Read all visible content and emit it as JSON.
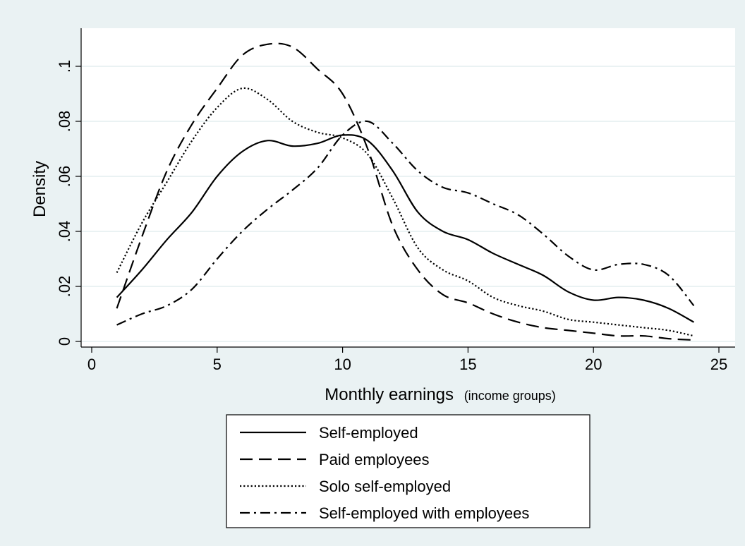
{
  "chart_data": {
    "type": "line",
    "title": "",
    "xlabel": "Monthly earnings",
    "xlabel_note": "(income groups)",
    "ylabel": "Density",
    "xlim": [
      0,
      25
    ],
    "ylim": [
      0,
      0.11
    ],
    "xticks": [
      0,
      5,
      10,
      15,
      20,
      25
    ],
    "xtick_labels": [
      "0",
      "5",
      "10",
      "15",
      "20",
      "25"
    ],
    "yticks": [
      0,
      0.02,
      0.04,
      0.06,
      0.08,
      0.1
    ],
    "ytick_labels": [
      "0",
      ".02",
      ".04",
      ".06",
      ".08",
      ".1"
    ],
    "grid": "horizontal",
    "legend_position": "bottom",
    "x": [
      1,
      2,
      3,
      4,
      5,
      6,
      7,
      8,
      9,
      10,
      11,
      12,
      13,
      14,
      15,
      16,
      17,
      18,
      19,
      20,
      21,
      22,
      23,
      24
    ],
    "series": [
      {
        "name": "Self-employed",
        "line_style": "solid",
        "values": [
          0.016,
          0.026,
          0.037,
          0.047,
          0.06,
          0.069,
          0.073,
          0.071,
          0.072,
          0.075,
          0.073,
          0.062,
          0.047,
          0.04,
          0.037,
          0.032,
          0.028,
          0.024,
          0.018,
          0.015,
          0.016,
          0.015,
          0.012,
          0.007
        ]
      },
      {
        "name": "Paid employees",
        "line_style": "dashed",
        "values": [
          0.012,
          0.038,
          0.062,
          0.079,
          0.092,
          0.104,
          0.108,
          0.107,
          0.099,
          0.09,
          0.07,
          0.042,
          0.026,
          0.017,
          0.014,
          0.01,
          0.007,
          0.005,
          0.004,
          0.003,
          0.002,
          0.002,
          0.001,
          0.0005
        ]
      },
      {
        "name": "Solo self-employed",
        "line_style": "dotted",
        "values": [
          0.025,
          0.043,
          0.058,
          0.073,
          0.085,
          0.092,
          0.088,
          0.08,
          0.076,
          0.074,
          0.068,
          0.052,
          0.034,
          0.026,
          0.022,
          0.016,
          0.013,
          0.011,
          0.008,
          0.007,
          0.006,
          0.005,
          0.004,
          0.002
        ]
      },
      {
        "name": "Self-employed with employees",
        "line_style": "dash-dot",
        "values": [
          0.006,
          0.01,
          0.013,
          0.019,
          0.03,
          0.04,
          0.048,
          0.055,
          0.063,
          0.075,
          0.08,
          0.072,
          0.062,
          0.056,
          0.054,
          0.05,
          0.046,
          0.039,
          0.031,
          0.026,
          0.028,
          0.028,
          0.024,
          0.013
        ]
      }
    ],
    "colors": {
      "background": "#eaf2f3",
      "plot_background": "#ffffff",
      "grid": "#eaf2f3",
      "line": "#000000"
    }
  }
}
